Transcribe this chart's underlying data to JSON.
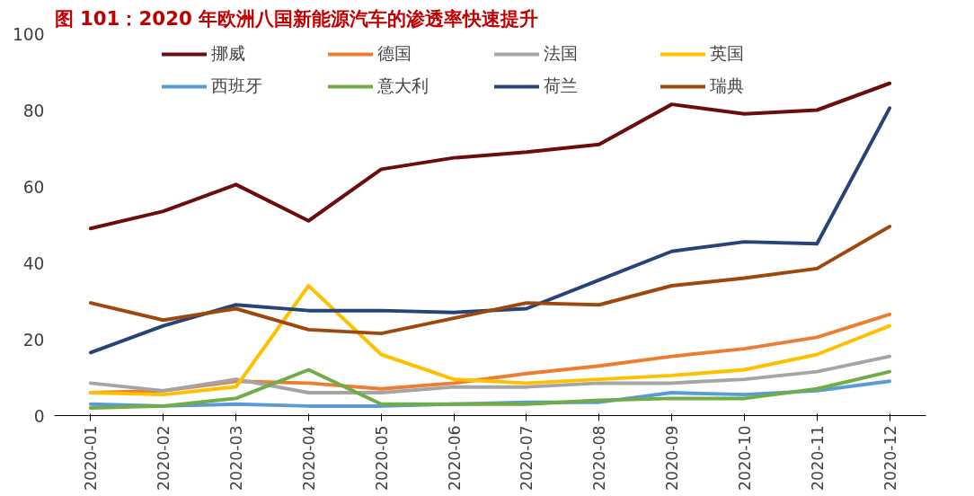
{
  "chart_data": {
    "type": "line",
    "title": "图 101：2020 年欧洲八国新能源汽车的渗透率快速提升",
    "categories": [
      "2020-01",
      "2020-02",
      "2020-03",
      "2020-04",
      "2020-05",
      "2020-06",
      "2020-07",
      "2020-08",
      "2020-09",
      "2020-10",
      "2020-11",
      "2020-12"
    ],
    "series": [
      {
        "name": "挪威",
        "color": "#6b0d0d",
        "values": [
          49,
          53.5,
          60.5,
          51,
          64.5,
          67.5,
          69,
          71,
          81.5,
          79,
          80,
          87
        ]
      },
      {
        "name": "德国",
        "color": "#ed7d31",
        "values": [
          6,
          6.5,
          9,
          8.5,
          7,
          8.5,
          11,
          13,
          15.5,
          17.5,
          20.5,
          26.5
        ]
      },
      {
        "name": "法国",
        "color": "#a5a5a5",
        "values": [
          8.5,
          6.5,
          9.5,
          6,
          6,
          7.5,
          7.5,
          8.5,
          8.5,
          9.5,
          11.5,
          15.5
        ]
      },
      {
        "name": "英国",
        "color": "#ffc000",
        "values": [
          6,
          5.5,
          7.5,
          34,
          16,
          9.5,
          8.5,
          9.5,
          10.5,
          12,
          16,
          23.5
        ]
      },
      {
        "name": "西班牙",
        "color": "#5b9bd5",
        "values": [
          3,
          2.5,
          3,
          2.5,
          2.5,
          3,
          3.5,
          3.5,
          6,
          5.5,
          6.5,
          9
        ]
      },
      {
        "name": "意大利",
        "color": "#70ad47",
        "values": [
          2,
          2.5,
          4.5,
          12,
          3,
          3,
          3,
          4,
          4.5,
          4.5,
          7,
          11.5
        ]
      },
      {
        "name": "荷兰",
        "color": "#264478",
        "values": [
          16.5,
          23.5,
          29,
          27.5,
          27.5,
          27,
          28,
          35.5,
          43,
          45.5,
          45,
          80.5
        ]
      },
      {
        "name": "瑞典",
        "color": "#9e480e",
        "values": [
          29.5,
          25,
          28,
          22.5,
          21.5,
          25.5,
          29.5,
          29,
          34,
          36,
          38.5,
          49.5
        ]
      }
    ],
    "ylim": [
      0,
      100
    ],
    "yticks": [
      0,
      20,
      40,
      60,
      80,
      100
    ],
    "grid": false,
    "legend": "top",
    "line_style": "solid",
    "marker": "none"
  }
}
